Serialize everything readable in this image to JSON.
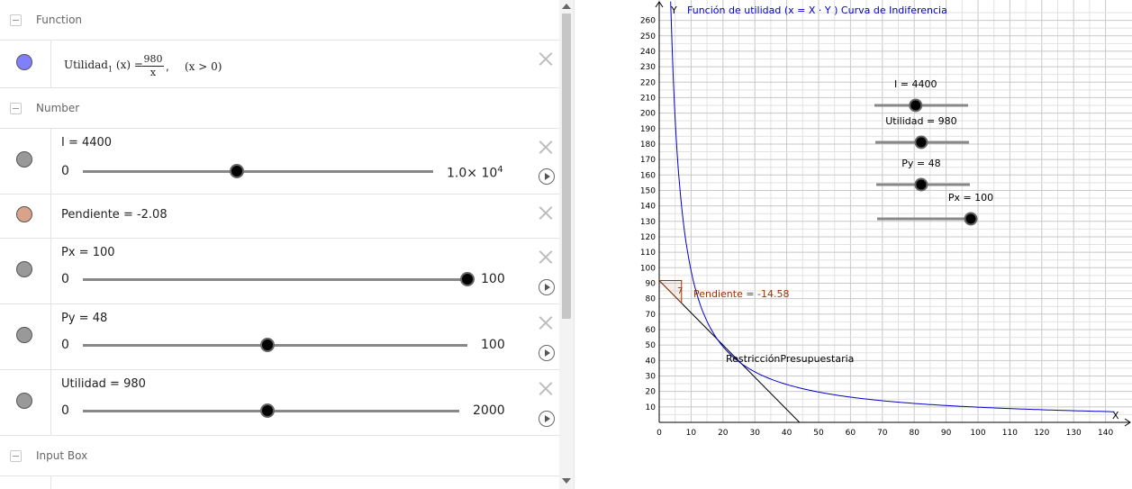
{
  "algebra": {
    "function_header": "Function",
    "number_header": "Number",
    "inputbox_header": "Input Box",
    "function_row": {
      "name": "Utilidad",
      "subscript": "1",
      "arg": "(x) =",
      "numerator": "980",
      "denominator": "x",
      "comma": ",",
      "condition": "(x > 0)",
      "color": "#8080ff"
    },
    "sliders": [
      {
        "label": "I = 4400",
        "min": "0",
        "max_base": "1.0× 10",
        "max_exp": "4",
        "value_fraction": 0.44
      },
      {
        "label": "Px = 100",
        "min": "0",
        "max_base": "100",
        "max_exp": "",
        "value_fraction": 1.0
      },
      {
        "label": "Py = 48",
        "min": "0",
        "max_base": "100",
        "max_exp": "",
        "value_fraction": 0.48
      },
      {
        "label": "Utilidad = 980",
        "min": "0",
        "max_base": "2000",
        "max_exp": "",
        "value_fraction": 0.49
      }
    ],
    "pendiente_row": {
      "label": "Pendiente = -2.08",
      "color": "#d9a38a"
    },
    "slider_dot_color": "#999999"
  },
  "graphics": {
    "function_label": "Función de utilidad (x = X · Y ) Curva de Indiferencia",
    "y_axis_label": "Y",
    "x_axis_label": "X",
    "budget_label": "RestricciónPresupuestaria",
    "slope_label": "Pendiente = -14.58",
    "slope_triangle_label": "7",
    "curve_color": "#0000cc",
    "slope_color": "#993300",
    "grid": true,
    "x_range": [
      0,
      143
    ],
    "y_range": [
      0,
      265
    ],
    "x_ticks": [
      "0",
      "10",
      "20",
      "30",
      "40",
      "50",
      "60",
      "70",
      "80",
      "90",
      "100",
      "110",
      "120",
      "130",
      "140"
    ],
    "y_ticks": [
      "10",
      "20",
      "30",
      "40",
      "50",
      "60",
      "70",
      "80",
      "90",
      "100",
      "110",
      "120",
      "130",
      "140",
      "150",
      "160",
      "170",
      "180",
      "190",
      "200",
      "210",
      "220",
      "230",
      "240",
      "250",
      "260"
    ],
    "utility_value": 980,
    "budget_intercepts": {
      "x": 44,
      "y": 91.7
    },
    "sliders": [
      {
        "label": "I = 4400",
        "value_fraction": 0.44
      },
      {
        "label": "Utilidad = 980",
        "value_fraction": 0.49
      },
      {
        "label": "Py = 48",
        "value_fraction": 0.48
      },
      {
        "label": "Px = 100",
        "value_fraction": 1.0
      }
    ]
  }
}
